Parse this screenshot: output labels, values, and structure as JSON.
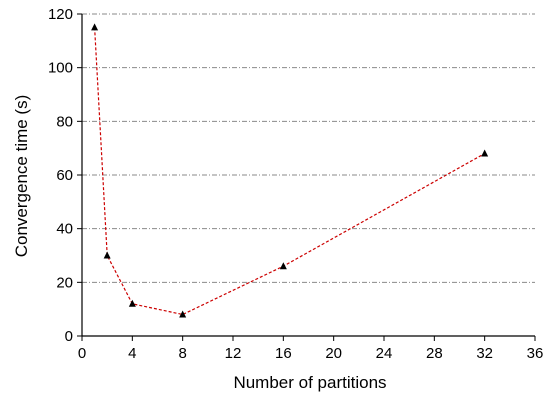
{
  "chart_data": {
    "type": "line",
    "title": "",
    "xlabel": "Number of partitions",
    "ylabel": "Convergence time (s)",
    "xlim": [
      0,
      36
    ],
    "ylim": [
      0,
      120
    ],
    "xticks": [
      0,
      4,
      8,
      12,
      16,
      20,
      24,
      28,
      32,
      36
    ],
    "yticks": [
      0,
      20,
      40,
      60,
      80,
      100,
      120
    ],
    "grid": "horizontal dash-dot",
    "legend": "none",
    "series": [
      {
        "x": [
          1,
          2,
          4,
          8,
          16,
          32
        ],
        "y": [
          115,
          30,
          12,
          8,
          26,
          68
        ],
        "line_color": "#cc0000",
        "line_style": "dashed",
        "marker": "triangle",
        "marker_color": "#000000"
      }
    ]
  }
}
